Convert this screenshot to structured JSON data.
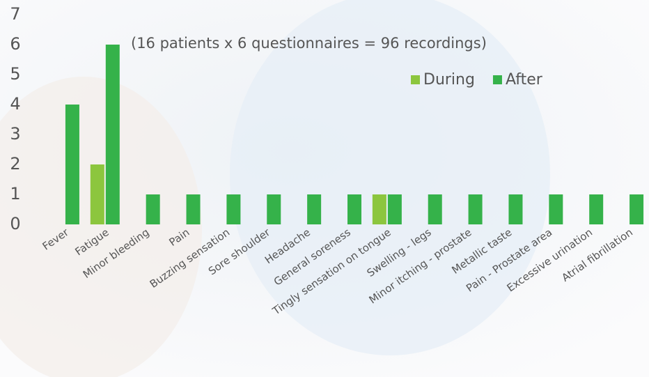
{
  "chart_data": {
    "type": "bar",
    "annotation": "(16 patients x 6 questionnaires = 96 recordings)",
    "categories": [
      "Fever",
      "Fatigue",
      "Minor bleeding",
      "Pain",
      "Buzzing sensation",
      "Sore shoulder",
      "Headache",
      "General soreness",
      "Tingly sensation on tongue",
      "Swelling - legs",
      "Minor itching - prostate",
      "Metallic taste",
      "Pain - Prostate area",
      "Excessive urination",
      "Atrial fibrillation"
    ],
    "series": [
      {
        "name": "During",
        "color": "#8cc63e",
        "values": [
          0,
          2,
          0,
          0,
          0,
          0,
          0,
          0,
          1,
          0,
          0,
          0,
          0,
          0,
          0
        ]
      },
      {
        "name": "After",
        "color": "#35b24a",
        "values": [
          4,
          6,
          1,
          1,
          1,
          1,
          1,
          1,
          1,
          1,
          1,
          1,
          1,
          1,
          1
        ]
      }
    ],
    "ylim": [
      0,
      7
    ],
    "yticks": [
      0,
      1,
      2,
      3,
      4,
      5,
      6,
      7
    ],
    "grid": false
  }
}
